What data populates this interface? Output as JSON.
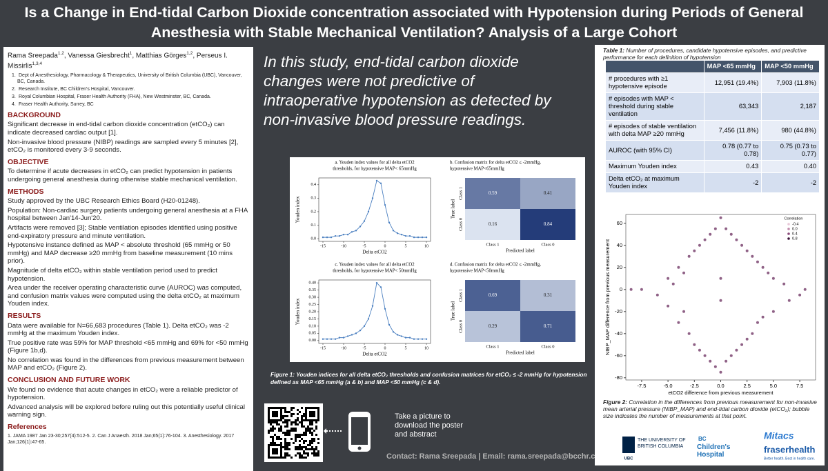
{
  "title": [
    "Is a Change in End-tidal Carbon Dioxide concentration associated with Hypotension during Periods of General",
    "Anesthesia with Stable Mechanical Ventilation? Analysis of a Large Cohort"
  ],
  "authors": [
    {
      "name": "Rama Sreepada",
      "sup": "1,2"
    },
    {
      "name": ", Vanessa Giesbrecht",
      "sup": "1"
    },
    {
      "name": ", Matthias Görges",
      "sup": "1,2"
    },
    {
      "name": ", Perseus I. Missirlis",
      "sup": "1,3,4"
    }
  ],
  "affiliations": [
    {
      "n": "1.",
      "text": "Dept of Anesthesiology, Pharmacology & Therapeutics, University of British Columbia (UBC), Vancouver, BC, Canada."
    },
    {
      "n": "2.",
      "text": "Research Institute, BC Children's Hospital, Vancouver."
    },
    {
      "n": "3.",
      "text": "Royal Columbian Hospital, Fraser Health Authority (FHA), New Westminster, BC, Canada."
    },
    {
      "n": "4.",
      "text": "Fraser Health Authority, Surrey, BC"
    }
  ],
  "sections": [
    {
      "heading": "BACKGROUND",
      "paragraphs": [
        "Significant decrease in end-tidal carbon dioxide concentration (etCO₂) can indicate decreased cardiac output [1].",
        "Non-invasive blood pressure (NIBP) readings are sampled every 5 minutes [2], etCO₂ is monitored every 3-9 seconds."
      ]
    },
    {
      "heading": "OBJECTIVE",
      "paragraphs": [
        "To determine if acute decreases in etCO₂ can predict hypotension in patients undergoing general anesthesia during otherwise stable mechanical ventilation."
      ]
    },
    {
      "heading": "METHODS",
      "paragraphs": [
        "Study approved by the UBC Research Ethics Board (H20-01248).",
        "Population: Non-cardiac surgery patients undergoing general anesthesia at a FHA hospital between Jan'14-Jun'20.",
        "Artifacts were removed [3]; Stable ventilation episodes identified using positive end-expiratory pressure and minute ventilation.",
        "Hypotensive instance defined as MAP < absolute threshold (65 mmHg or 50 mmHg) and MAP decrease ≥20 mmHg from baseline measurement (10 mins prior).",
        "Magnitude of delta etCO₂ within stable ventilation period used to predict hypotension.",
        "Area under the receiver operating characteristic curve (AUROC) was computed, and confusion matrix values were computed using the delta etCO₂ at maximum Youden index."
      ]
    },
    {
      "heading": "RESULTS",
      "paragraphs": [
        "Data were available for N=66,683 procedures (Table 1). Delta etCO₂ was -2 mmHg at the maximum Youden index.",
        "True positive rate was 59% for MAP threshold <65 mmHg and 69% for <50 mmHg (Figure 1b,d).",
        "No correlation was found in the differences from previous measurement between MAP and etCO₂ (Figure 2)."
      ]
    },
    {
      "heading": "CONCLUSION AND FUTURE WORK",
      "paragraphs": [
        "We found no evidence that acute changes in etCO₂ were a reliable predictor of hypotension.",
        "Advanced analysis will be explored before ruling out this potentially useful clinical warning sign."
      ]
    }
  ],
  "references": {
    "heading": "References",
    "text": "1. JAMA 1987 Jan 23-30;257(4):512-5. 2. Can J Anaesth. 2018 Jan;65(1):76-104. 3. Anesthesiology. 2017 Jan;126(1):47-65."
  },
  "summary": "In this study, end-tidal carbon dioxide changes were not predictive of intraoperative hypotension as detected by non-invasive blood pressure readings.",
  "figure1": {
    "panels": [
      {
        "type": "line",
        "title": [
          "a. Youden index values for all delta etCO2",
          "thresholds, for hypotensive MAP< 65mmHg"
        ],
        "xlabel": "Delta etCO2",
        "ylabel": "Youden index",
        "color": "#4a7fc0",
        "x": [
          -15,
          -14,
          -13,
          -12,
          -11,
          -10,
          -9,
          -8,
          -7,
          -6,
          -5,
          -4,
          -3,
          -2,
          -1,
          0,
          1,
          2,
          3,
          4,
          5,
          6,
          7,
          8,
          9,
          10
        ],
        "values": [
          0.01,
          0.01,
          0.01,
          0.02,
          0.02,
          0.03,
          0.03,
          0.05,
          0.06,
          0.09,
          0.13,
          0.2,
          0.3,
          0.43,
          0.41,
          0.25,
          0.12,
          0.06,
          0.04,
          0.03,
          0.02,
          0.02,
          0.01,
          0.01,
          0.01,
          0.01
        ],
        "xlim": [
          -16,
          11
        ],
        "ylim": [
          -0.02,
          0.45
        ],
        "xticks": [
          -15,
          -10,
          -5,
          0,
          5,
          10
        ],
        "yticks": [
          {
            "value": 0,
            "label": "0.0"
          },
          0.1,
          0.2,
          0.3,
          0.4
        ]
      },
      {
        "type": "matrix",
        "title": [
          "b. Confusion matrix for delta etCO2 ≤ -2mmHg,",
          "hypotensive MAP<65mmHg"
        ],
        "xlabel": "Predicted label",
        "ylabel": "True label",
        "classes": [
          "Class 1",
          "Class 0"
        ],
        "values": [
          [
            0.59,
            0.41
          ],
          [
            0.16,
            0.84
          ]
        ]
      },
      {
        "type": "line",
        "title": [
          "c. Youden index values for all delta etCO2",
          "thresholds, for hypotensive MAP< 50mmHg"
        ],
        "xlabel": "Delta etCO2",
        "ylabel": "Youden index",
        "color": "#4a7fc0",
        "x": [
          -15,
          -14,
          -13,
          -12,
          -11,
          -10,
          -9,
          -8,
          -7,
          -6,
          -5,
          -4,
          -3,
          -2,
          -1,
          0,
          1,
          2,
          3,
          4,
          5,
          6,
          7,
          8,
          9,
          10
        ],
        "values": [
          0.01,
          0.01,
          0.01,
          0.01,
          0.02,
          0.02,
          0.03,
          0.04,
          0.05,
          0.07,
          0.1,
          0.15,
          0.24,
          0.4,
          0.37,
          0.22,
          0.11,
          0.06,
          0.04,
          0.03,
          0.02,
          0.02,
          0.01,
          0.01,
          0.01,
          0.01
        ],
        "xlim": [
          -16,
          11
        ],
        "ylim": [
          -0.02,
          0.42
        ],
        "xticks": [
          -15,
          -10,
          -5,
          0,
          5,
          10
        ],
        "yticks": [
          {
            "value": 0,
            "label": "0.00"
          },
          0.05,
          {
            "value": 0.1,
            "label": "0.10"
          },
          0.15,
          {
            "value": 0.2,
            "label": "0.20"
          },
          0.25,
          {
            "value": 0.3,
            "label": "0.30"
          },
          0.35,
          {
            "value": 0.4,
            "label": "0.40"
          }
        ]
      },
      {
        "type": "matrix",
        "title": [
          "d. Confusion matrix for delta etCO2 ≤ -2mmHg,",
          "hypotensive MAP<50mmHg"
        ],
        "xlabel": "Predicted label",
        "ylabel": "True label",
        "classes": [
          "Class 1",
          "Class 0"
        ],
        "values": [
          [
            0.69,
            0.31
          ],
          [
            0.29,
            0.71
          ]
        ]
      }
    ]
  },
  "figure1_caption": "Figure 1: Youden indices for all delta etCO₂ thresholds and confusion matrices for etCO₂ ≤ -2 mmHg for hypotension defined as MAP <65 mmHg (a & b) and MAP <50 mmHg (c & d).",
  "qr_text": "Take a picture to download the poster and abstract",
  "contact": "Contact: Rama Sreepada | Email: rama.sreepada@bcchr.ca",
  "table": {
    "label": "Table 1:",
    "caption": "Number of procedures, candidate hypotensive episodes, and predictive performance for each definition of hypotension",
    "header": [
      "MAP <65 mmHg",
      "MAP <50 mmHg"
    ],
    "rows": [
      [
        "# procedures with ≥1 hypotensive episode",
        "12,951 (19.4%)",
        "7,903 (11.8%)"
      ],
      [
        "# episodes with MAP < threshold during stable ventilation",
        "63,343",
        "2,187"
      ],
      [
        "# episodes of stable ventilation with delta MAP ≥20 mmHg",
        "7,456 (11.8%)",
        "980 (44.8%)"
      ],
      [
        "AUROC (with 95% CI)",
        "0.78 (0.77 to 0.78)",
        "0.75 (0.73 to 0.77)"
      ],
      [
        "Maximum Youden index",
        "0.43",
        "0.40"
      ],
      [
        "Delta etCO₂ at maximum Youden index",
        "-2",
        "-2"
      ]
    ]
  },
  "figure2": {
    "chart_data": {
      "type": "scatter",
      "xlabel": "etCO2 difference from previous measurement",
      "ylabel": "NIBP_MAP difference from previous measurement",
      "color": "#6a2c5e",
      "x": [
        -8.5,
        -7.5,
        -6,
        -5,
        -5,
        -4.5,
        -4,
        -4,
        -3.5,
        -3.5,
        -3,
        -3,
        -2.5,
        -2.5,
        -2,
        -2,
        -1.5,
        -1.5,
        -1,
        -1,
        -0.5,
        -0.5,
        0,
        0,
        0,
        0,
        0.5,
        0.5,
        1,
        1,
        1.5,
        1.5,
        2,
        2,
        2.5,
        2.5,
        3,
        3,
        3.5,
        3.5,
        4,
        4,
        4.5,
        5,
        5,
        6,
        6.5,
        7.5,
        8
      ],
      "values": [
        0,
        0,
        -5,
        10,
        -15,
        5,
        20,
        -30,
        15,
        -20,
        30,
        -40,
        35,
        -50,
        40,
        -55,
        45,
        -60,
        50,
        -65,
        55,
        -70,
        65,
        -75,
        10,
        -10,
        55,
        -65,
        50,
        -60,
        45,
        -55,
        40,
        -50,
        35,
        -45,
        30,
        -40,
        25,
        -30,
        20,
        -25,
        15,
        10,
        -20,
        5,
        -10,
        -5,
        0
      ],
      "xlim": [
        -9,
        9
      ],
      "ylim": [
        -82,
        68
      ],
      "xticks": [
        -7.5,
        {
          "value": -5,
          "label": "-5.0"
        },
        -2.5,
        {
          "value": 0,
          "label": "0.0"
        },
        2.5,
        {
          "value": 5,
          "label": "5.0"
        },
        7.5
      ],
      "yticks": [
        -80,
        -60,
        -40,
        -20,
        0,
        20,
        40,
        60
      ],
      "legend": {
        "title": "Correlation",
        "entries": [
          "-0.4",
          "0.0",
          "0.4",
          "0.8"
        ],
        "colors": [
          "#e8c8d8",
          "#c08aab",
          "#8a4a7a",
          "#3a1238"
        ]
      }
    }
  },
  "figure2_label": "Figure 2:",
  "figure2_caption": "Correlation in the differences from previous measurement for non-invasive mean arterial pressure (NIBP_MAP) and end-tidal carbon dioxide (etCO₂); bubble size indicates the number of measurements at that point.",
  "logos": {
    "ubc": "THE UNIVERSITY OF BRITISH COLUMBIA",
    "ubc_short": "UBC",
    "bcch_small": "BC",
    "bcch": "Children's Hospital",
    "mitacs": "Mitacs",
    "fraser": "fraserhealth",
    "fraser_tag": "Better health. Best in health care."
  }
}
